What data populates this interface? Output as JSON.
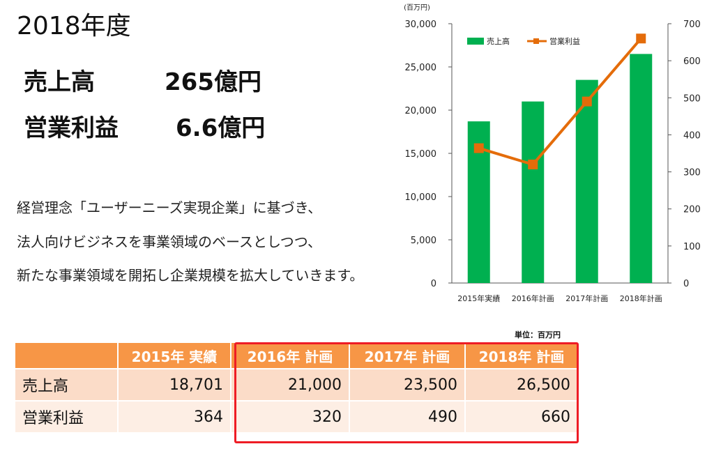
{
  "heading": {
    "year": "2018年度",
    "sales_label": "売上高",
    "sales_value": "265億円",
    "profit_label": "営業利益",
    "profit_value": "6.6億円"
  },
  "description": [
    "経営理念「ユーザーニーズ実現企業」に基づき、",
    "法人向けビジネスを事業領域のベースとしつつ、",
    "新たな事業領域を開拓し企業規模を拡大していきます。"
  ],
  "chart_data": {
    "type": "bar",
    "categories": [
      "2015年実績",
      "2016年計画",
      "2017年計画",
      "2018年計画"
    ],
    "series": [
      {
        "name": "売上高",
        "type": "bar",
        "axis": "left",
        "values": [
          18701,
          21000,
          23500,
          26500
        ],
        "color": "#00b050"
      },
      {
        "name": "営業利益",
        "type": "line",
        "axis": "right",
        "values": [
          364,
          320,
          490,
          660
        ],
        "color": "#e46c0a"
      }
    ],
    "y_left": {
      "unit": "(百万円)",
      "ylim": [
        0,
        30000
      ],
      "ticks": [
        "0",
        "5,000",
        "10,000",
        "15,000",
        "20,000",
        "25,000",
        "30,000"
      ]
    },
    "y_right": {
      "ylim": [
        0,
        700
      ],
      "ticks": [
        "0",
        "100",
        "200",
        "300",
        "400",
        "500",
        "600",
        "700"
      ]
    },
    "legend_position": "top"
  },
  "table": {
    "unit": "単位：百万円",
    "headers": [
      "",
      "2015年 実績",
      "2016年 計画",
      "2017年 計画",
      "2018年 計画"
    ],
    "rows": [
      {
        "label": "売上高",
        "values": [
          "18,701",
          "21,000",
          "23,500",
          "26,500"
        ]
      },
      {
        "label": "営業利益",
        "values": [
          "364",
          "320",
          "490",
          "660"
        ]
      }
    ],
    "highlight_color": "#ee1c25",
    "header_color": "#f79646"
  }
}
